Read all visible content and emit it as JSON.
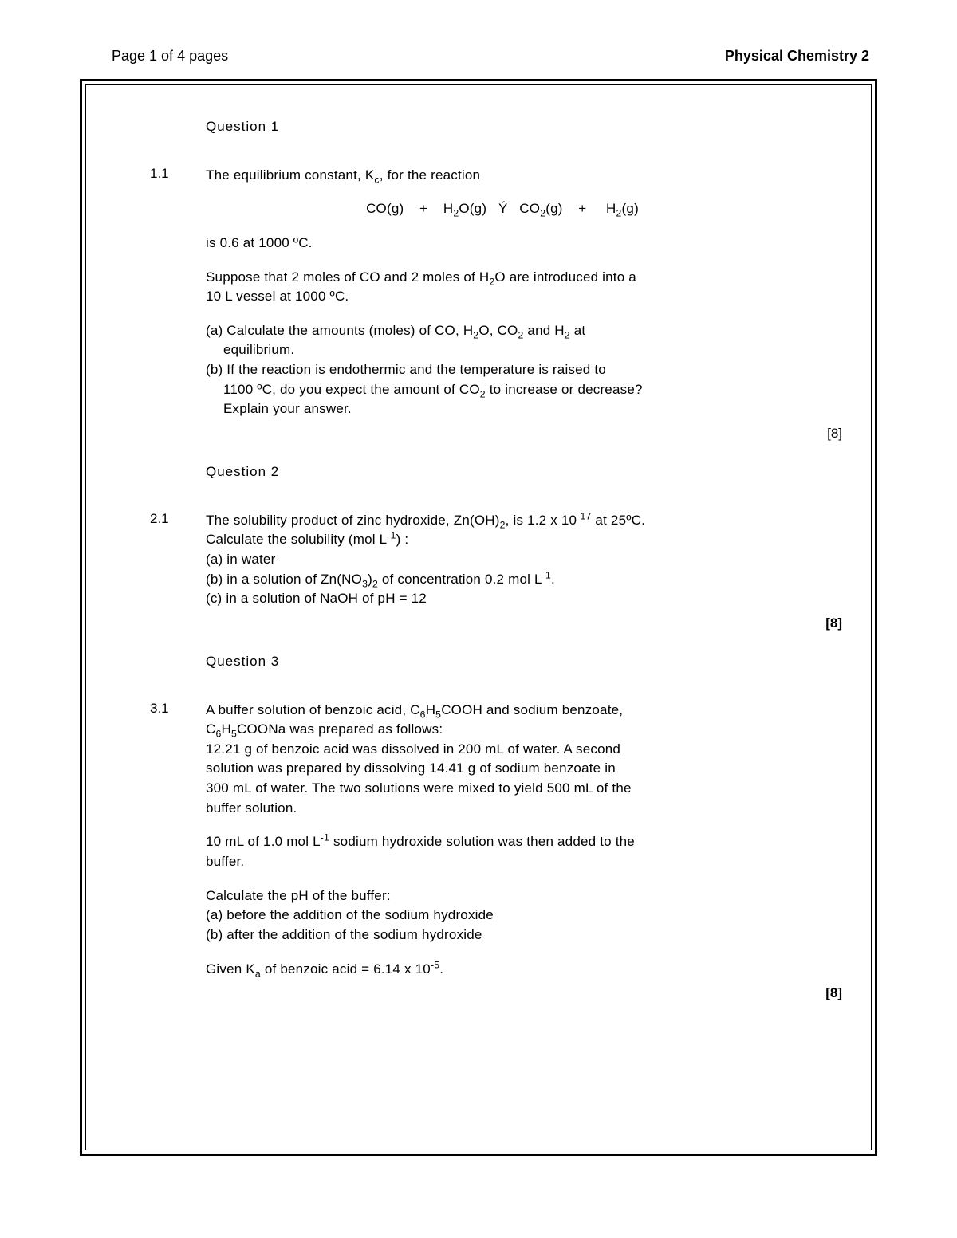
{
  "header": {
    "left": "Page 1 of 4 pages",
    "right": "Physical Chemistry 2"
  },
  "q1": {
    "title": "Question 1",
    "num": "1.1",
    "intro": "The equilibrium constant, K",
    "intro2": ", for the reaction",
    "eqn_co": "CO(g)",
    "eqn_plus": "+",
    "eqn_h2o": "O(g)",
    "eqn_arrow": "Ý",
    "eqn_co2": "(g)",
    "eqn_h2": "(g)",
    "line_is": "is 0.6 at 1000 ºC.",
    "suppose_a": "Suppose that 2 moles of CO and 2 moles of H",
    "suppose_b": "O are introduced into a",
    "suppose_c": "10 L vessel at 1000 ºC.",
    "a1": "(a) Calculate the amounts (moles) of CO, H",
    "a2": "O, CO",
    "a3": " and H",
    "a4": " at",
    "a5": "equilibrium.",
    "b1": "(b) If the reaction is endothermic and the temperature is raised to",
    "b2": "1100 ºC, do you expect the amount of CO",
    "b3": " to increase or decrease?",
    "b4": "Explain your answer.",
    "marks": "[8]"
  },
  "q2": {
    "title": "Question 2",
    "num": "2.1",
    "l1a": "The solubility product of zinc hydroxide, Zn(OH)",
    "l1b": ", is 1.2 x 10",
    "l1c": " at 25ºC.",
    "l2a": "Calculate the solubility (mol L",
    "l2b": ") :",
    "a": "(a) in water",
    "b1": "(b) in a solution of Zn(NO",
    "b2": ")",
    "b3": " of concentration 0.2 mol L",
    "b4": ".",
    "c": "(c) in a solution of NaOH of pH = 12",
    "marks": "[8]"
  },
  "q3": {
    "title": "Question 3",
    "num": "3.1",
    "l1a": "A buffer solution of benzoic acid, C",
    "l1b": "H",
    "l1c": "COOH and sodium benzoate,",
    "l2a": "C",
    "l2b": "H",
    "l2c": "COONa was prepared as follows:",
    "l3": "12.21 g of benzoic acid was dissolved in 200 mL of water.  A second",
    "l4": "solution was prepared by dissolving 14.41 g of sodium benzoate in",
    "l5": "300 mL of water.  The two solutions were mixed to yield 500 mL of the",
    "l6": "buffer solution.",
    "l7a": "10 mL of 1.0 mol L",
    "l7b": " sodium hydroxide solution was then added to the",
    "l8": "buffer.",
    "l9": "Calculate the pH of the buffer:",
    "l10": "(a) before the addition of the sodium hydroxide",
    "l11": "(b) after the addition of the sodium hydroxide",
    "l12a": "Given K",
    "l12b": " of benzoic acid = 6.14 x 10",
    "l12c": ".",
    "marks": "[8]"
  }
}
